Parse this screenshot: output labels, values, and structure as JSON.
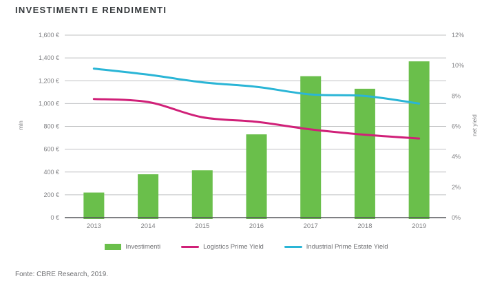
{
  "title": "INVESTIMENTI E RENDIMENTI",
  "footer": {
    "source": "Fonte: CBRE Research, 2019."
  },
  "colors": {
    "bar_green": "#6abf4b",
    "logistics_pink": "#d02078",
    "industrial_cyan": "#2ab5d6",
    "title_text": "#35393c",
    "axis_text": "#808184",
    "gridline": "#bfc0c2",
    "axis_line": "#55565a",
    "legend_text": "#6d6e71"
  },
  "chart_data": {
    "type": "bar",
    "title": "INVESTIMENTI E RENDIMENTI",
    "categories": [
      "2013",
      "2014",
      "2015",
      "2016",
      "2017",
      "2018",
      "2019"
    ],
    "series": [
      {
        "name": "Investimenti",
        "type": "bar",
        "axis": "left",
        "color": "#6abf4b",
        "values": [
          220,
          380,
          415,
          730,
          1240,
          1130,
          1370
        ]
      },
      {
        "name": "Logistics Prime Yield",
        "type": "line",
        "axis": "right",
        "color": "#d02078",
        "values": [
          7.8,
          7.6,
          6.6,
          6.3,
          5.8,
          5.45,
          5.2
        ]
      },
      {
        "name": "Industrial Prime Estate Yield",
        "type": "line",
        "axis": "right",
        "color": "#2ab5d6",
        "values": [
          9.8,
          9.4,
          8.9,
          8.6,
          8.1,
          8.0,
          7.5
        ]
      }
    ],
    "left_axis": {
      "label": "mln",
      "min": 0,
      "max": 1600,
      "step": 200,
      "tick_labels": [
        "0 €",
        "200 €",
        "400 €",
        "600 €",
        "800 €",
        "1,000 €",
        "1,200 €",
        "1,400 €",
        "1,600 €"
      ]
    },
    "right_axis": {
      "label": "net yield",
      "min": 0,
      "max": 12,
      "step": 2,
      "tick_labels": [
        "0%",
        "2%",
        "4%",
        "6%",
        "8%",
        "10%",
        "12%"
      ]
    },
    "grid": true,
    "legend_position": "bottom"
  }
}
